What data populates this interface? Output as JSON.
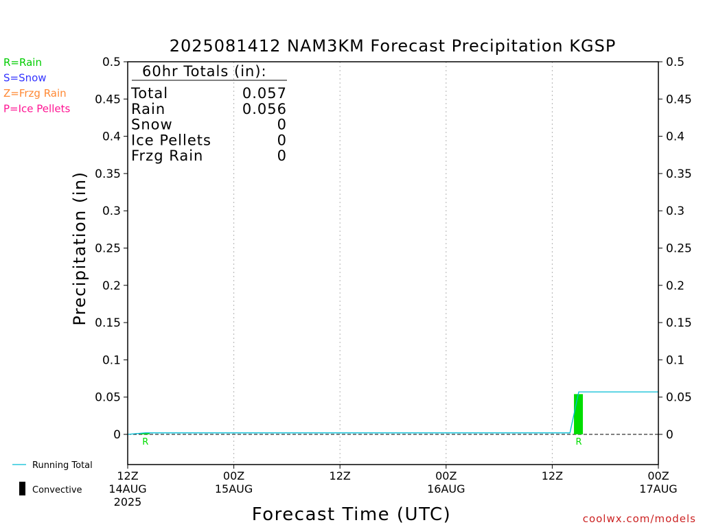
{
  "chart_data": {
    "type": "bar",
    "title": "2025081412 NAM3KM Forecast Precipitation KGSP",
    "ylabel": "Precipitation (in)",
    "xlabel": "Forecast Time (UTC)",
    "ylim": [
      -0.04,
      0.5
    ],
    "yticks": [
      "0.5",
      "0.45",
      "0.4",
      "0.35",
      "0.3",
      "0.25",
      "0.2",
      "0.15",
      "0.1",
      "0.05",
      "0"
    ],
    "xlim": [
      "2025-08-14T12:00Z",
      "2025-08-17T00:00Z"
    ],
    "xticks": [
      {
        "time": "2025-08-14T12:00Z",
        "lines": [
          "12Z",
          "14AUG",
          "2025"
        ]
      },
      {
        "time": "2025-08-15T00:00Z",
        "lines": [
          "00Z",
          "15AUG"
        ]
      },
      {
        "time": "2025-08-15T12:00Z",
        "lines": [
          "12Z"
        ]
      },
      {
        "time": "2025-08-16T00:00Z",
        "lines": [
          "00Z",
          "16AUG"
        ]
      },
      {
        "time": "2025-08-16T12:00Z",
        "lines": [
          "12Z"
        ]
      },
      {
        "time": "2025-08-17T00:00Z",
        "lines": [
          "00Z",
          "17AUG"
        ]
      }
    ],
    "grid": true,
    "precip_type_legend": [
      {
        "label": "R=Rain",
        "color": "#00cc00"
      },
      {
        "label": "S=Snow",
        "color": "#3333ff"
      },
      {
        "label": "Z=Frzg Rain",
        "color": "#ff8833"
      },
      {
        "label": "P=Ice Pellets",
        "color": "#ff1493"
      }
    ],
    "series_legend": [
      {
        "label": "Running Total",
        "color": "#00bcd4"
      },
      {
        "label": "Convective",
        "color": "#000000"
      }
    ],
    "bars": [
      {
        "time": "2025-08-14T14:00Z",
        "value": 0.0015,
        "type_letter": "R",
        "color": "#00dd00"
      },
      {
        "time": "2025-08-16T15:00Z",
        "value": 0.054,
        "type_letter": "R",
        "color": "#00dd00"
      }
    ],
    "running_total": [
      {
        "time": "2025-08-14T12:00Z",
        "value": 0.0
      },
      {
        "time": "2025-08-14T14:00Z",
        "value": 0.002
      },
      {
        "time": "2025-08-16T14:00Z",
        "value": 0.002
      },
      {
        "time": "2025-08-16T15:00Z",
        "value": 0.057
      },
      {
        "time": "2025-08-17T00:00Z",
        "value": 0.057
      }
    ],
    "totals_box": {
      "header": "60hr Totals (in):",
      "rows": [
        {
          "label": "Total",
          "value": "0.057"
        },
        {
          "label": "Rain",
          "value": "0.056"
        },
        {
          "label": "Snow",
          "value": "0"
        },
        {
          "label": "Ice Pellets",
          "value": "0"
        },
        {
          "label": "Frzg Rain",
          "value": "0"
        }
      ]
    },
    "credit": "coolwx.com/models"
  }
}
